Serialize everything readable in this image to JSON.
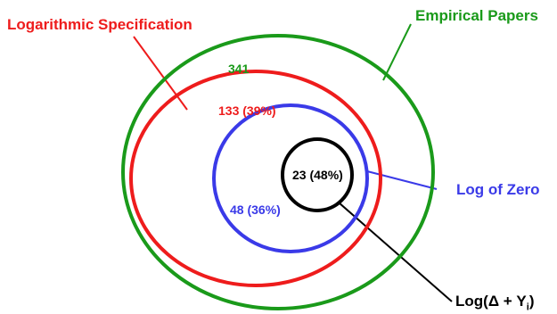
{
  "diagram": {
    "sets": [
      {
        "label": "Empirical Papers",
        "count": "341",
        "color": "#1a9a1a"
      },
      {
        "label": "Logarithmic Specification",
        "count": "133 (39%)",
        "color": "#ee1c1c"
      },
      {
        "label": "Log of Zero",
        "count": "48 (36%)",
        "color": "#3a3ae8"
      },
      {
        "label": "Log(Δ + Y",
        "label_subscript": "i",
        "label_suffix": ")",
        "count": "23 (48%)",
        "color": "#000000"
      }
    ]
  }
}
